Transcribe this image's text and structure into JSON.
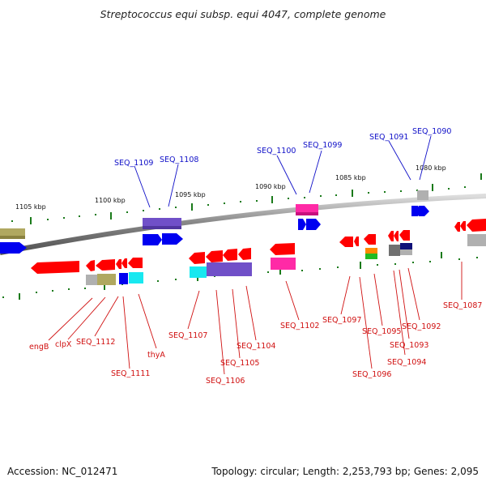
{
  "title": "Streptococcus equi subsp. equi 4047, complete genome",
  "footer": {
    "accession": "Accession: NC_012471",
    "summary": "Topology: circular; Length: 2,253,793 bp; Genes: 2,095"
  },
  "colors": {
    "red": "#ff0000",
    "blue": "#0000f0",
    "purple": "#7050c8",
    "olive": "#b0a860",
    "magenta": "#ff2aa6",
    "cyan": "#18e8f0",
    "gray": "#b0b0b0",
    "darkgray": "#707070",
    "navy": "#101078",
    "orange": "#ff8800",
    "green": "#22bb22",
    "tick_green": "#1a7a1a"
  },
  "kbp_labels": [
    "1105 kbp",
    "1100 kbp",
    "1095 kbp",
    "1090 kbp",
    "1085 kbp",
    "1080 kbp"
  ],
  "blue_labels": [
    "SEQ_1109",
    "SEQ_1108",
    "SEQ_1100",
    "SEQ_1099",
    "SEQ_1091",
    "SEQ_1090"
  ],
  "red_labels": [
    "engB",
    "clpX",
    "SEQ_1112",
    "SEQ_1111",
    "thyA",
    "SEQ_1107",
    "SEQ_1106",
    "SEQ_1105",
    "SEQ_1104",
    "SEQ_1102",
    "SEQ_1097",
    "SEQ_1096",
    "SEQ_1095",
    "SEQ_1094",
    "SEQ_1093",
    "SEQ_1092",
    "SEQ_1087"
  ]
}
